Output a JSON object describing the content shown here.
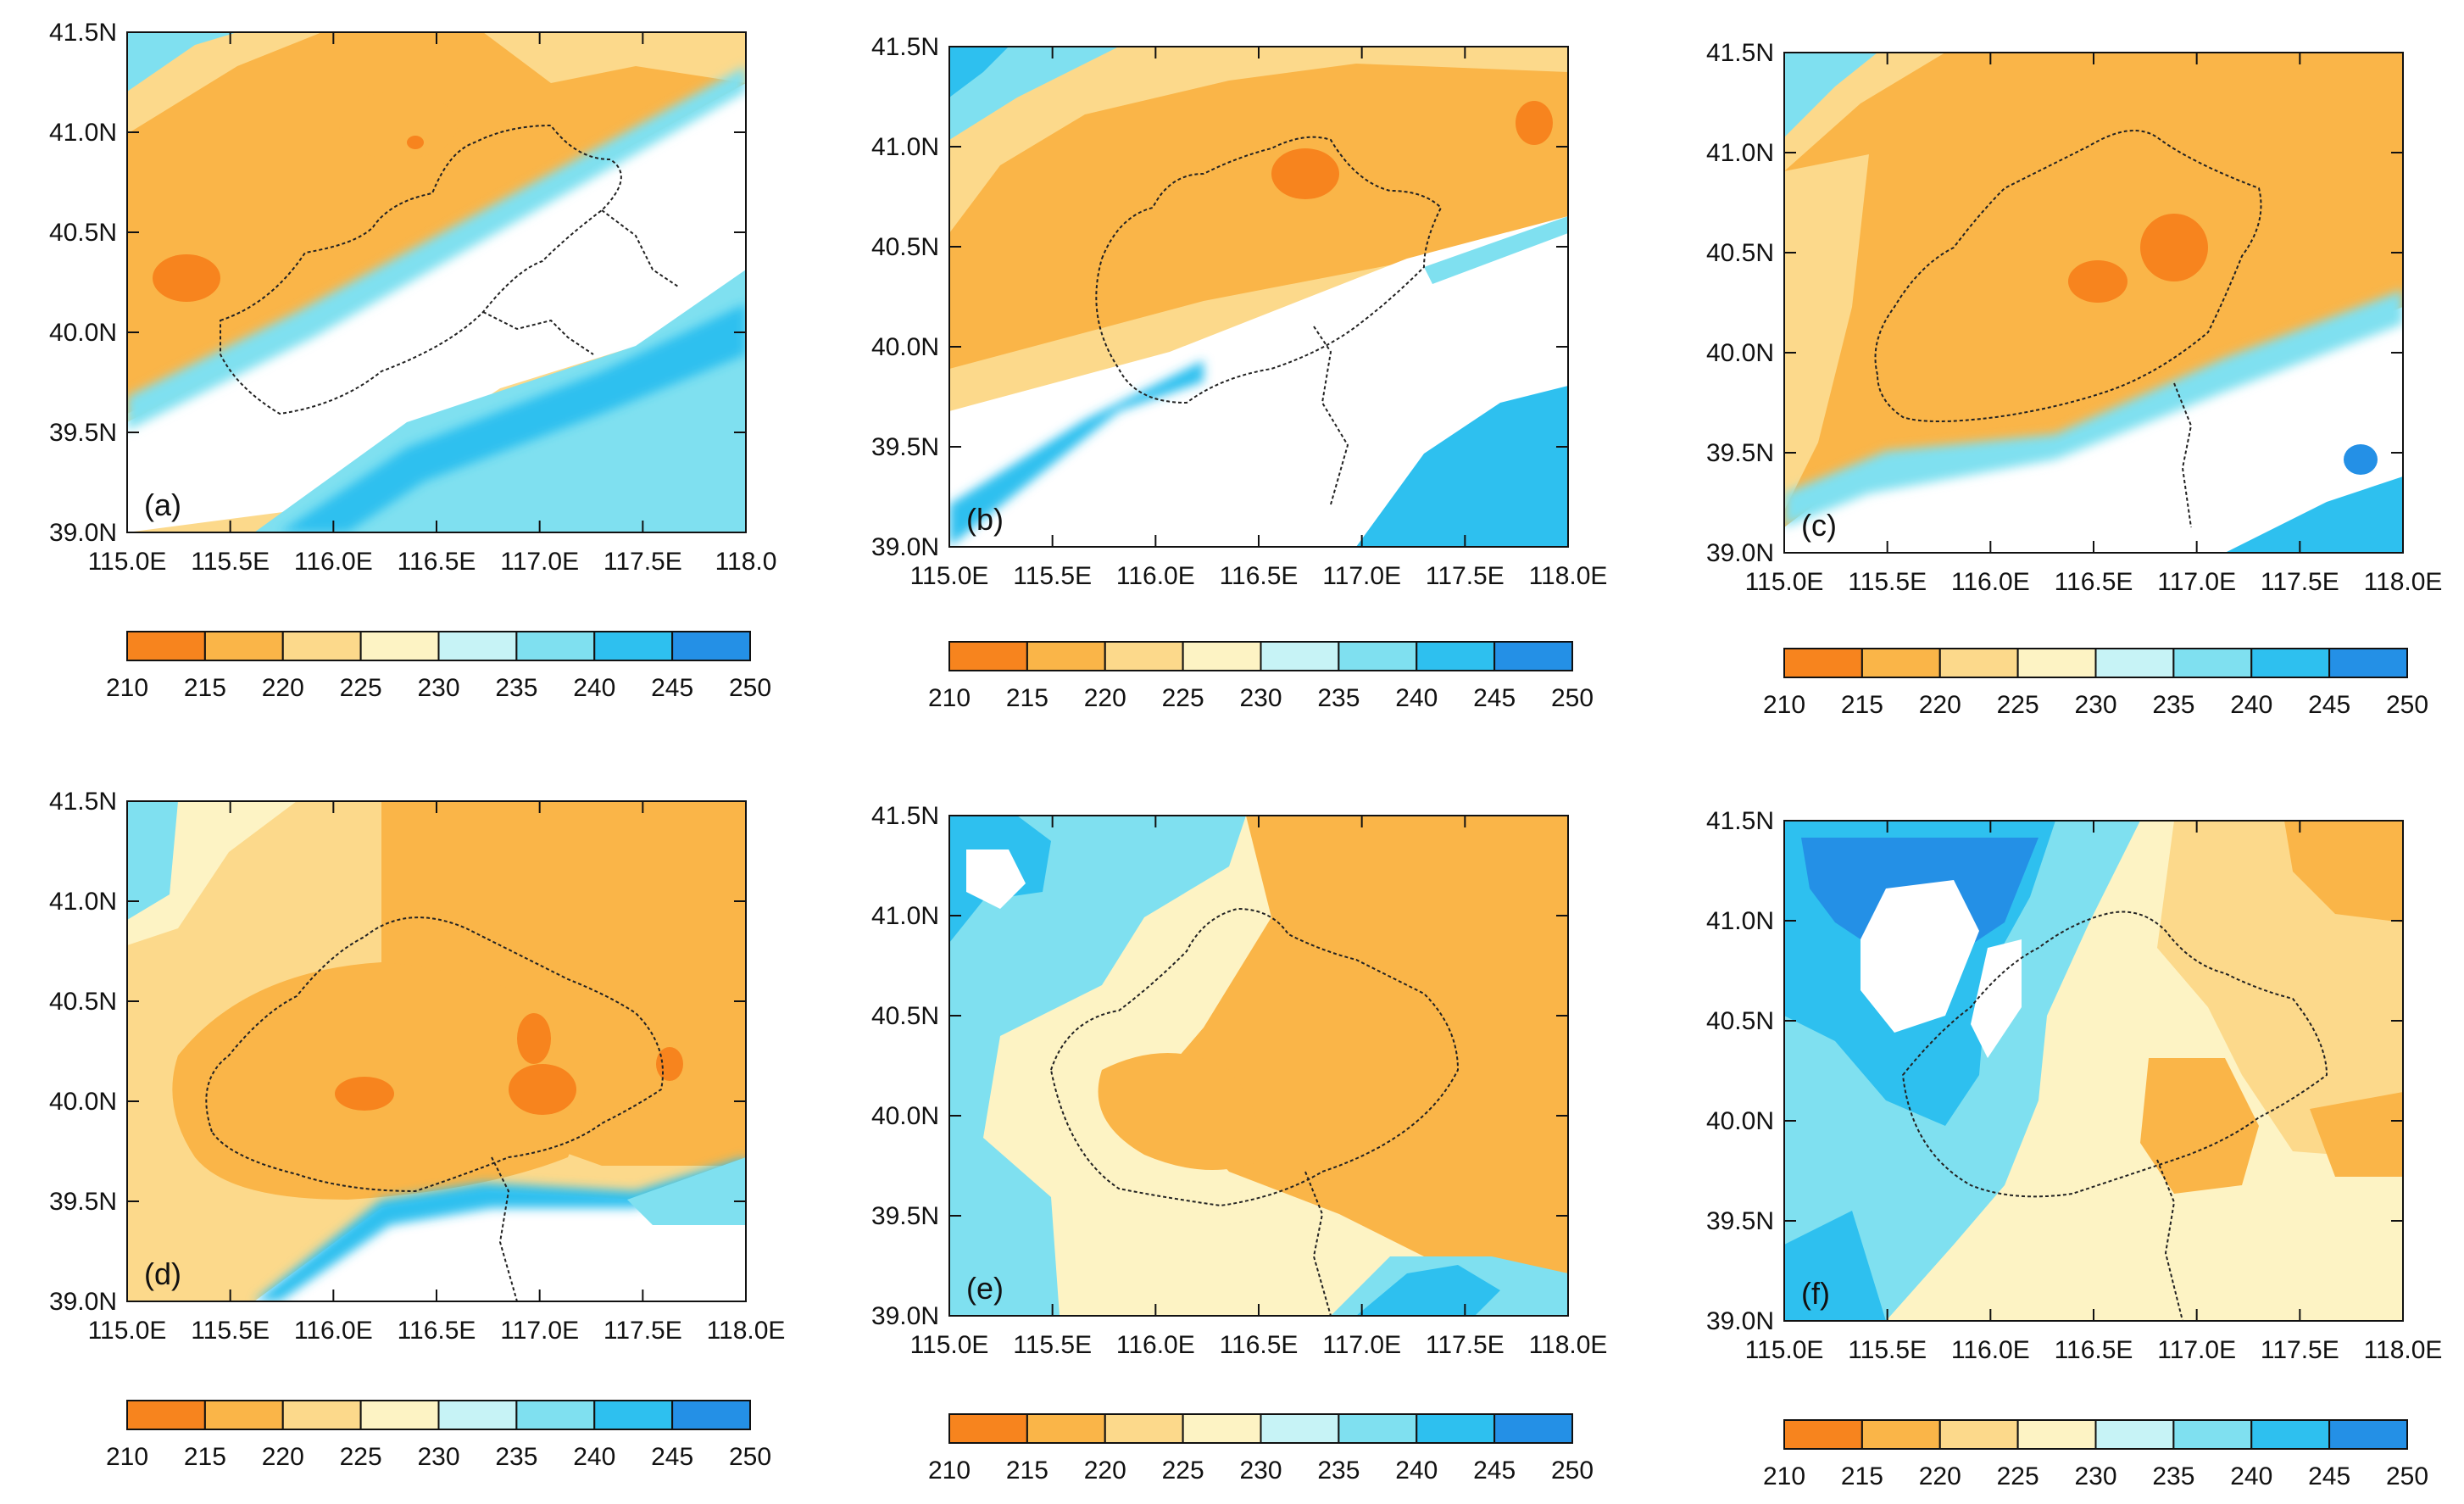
{
  "figure": {
    "panel_labels": [
      "(a)",
      "(b)",
      "(c)",
      "(d)",
      "(e)",
      "(f)"
    ],
    "x_ticks": [
      "115.0E",
      "115.5E",
      "116.0E",
      "116.5E",
      "117.0E",
      "117.5E",
      "118.0E"
    ],
    "x_ticks_panel_a": [
      "115.0E",
      "115.5E",
      "116.0E",
      "116.5E",
      "117.0E",
      "117.5E",
      "118.0"
    ],
    "y_ticks": [
      "39.0N",
      "39.5N",
      "40.0N",
      "40.5N",
      "41.0N",
      "41.5N"
    ],
    "colorbar_labels": [
      "210",
      "215",
      "220",
      "225",
      "230",
      "235",
      "240",
      "245",
      "250"
    ],
    "colorbar_colors": [
      "#f7841e",
      "#fab548",
      "#fcd98b",
      "#fdf3c4",
      "#c7f3f6",
      "#7fe0f0",
      "#2ec0ef",
      "#2490e6"
    ],
    "lon_range": [
      115.0,
      118.0
    ],
    "lat_range": [
      39.0,
      41.5
    ]
  }
}
